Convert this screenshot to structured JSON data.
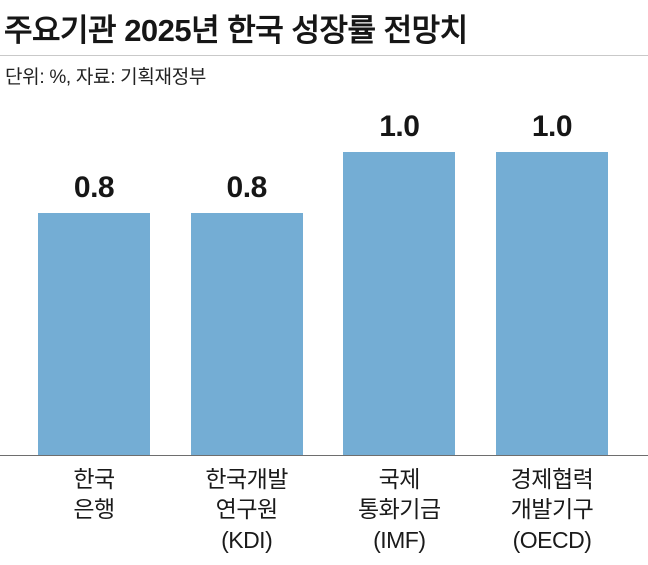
{
  "header": {
    "title": "주요기관 2025년 한국 성장률 전망치",
    "subtitle": "단위: %, 자료: 기획재정부"
  },
  "chart_data": {
    "type": "bar",
    "title": "주요기관 2025년 한국 성장률 전망치",
    "unit_source_note": "단위: %, 자료: 기획재정부",
    "unit": "%",
    "source": "기획재정부",
    "categories": [
      [
        "한국",
        "은행"
      ],
      [
        "한국개발",
        "연구원",
        "(KDI)"
      ],
      [
        "국제",
        "통화기금",
        "(IMF)"
      ],
      [
        "경제협력",
        "개발기구",
        "(OECD)"
      ]
    ],
    "values": [
      0.8,
      0.8,
      1.0,
      1.0
    ],
    "value_labels": [
      "0.8",
      "0.8",
      "1.0",
      "1.0"
    ],
    "xlabel": "",
    "ylabel": "",
    "ylim": [
      0,
      1.2
    ],
    "grid": false,
    "legend": "none",
    "bar_color": "#74add4",
    "axis_line_color": "#6e6e6e"
  }
}
